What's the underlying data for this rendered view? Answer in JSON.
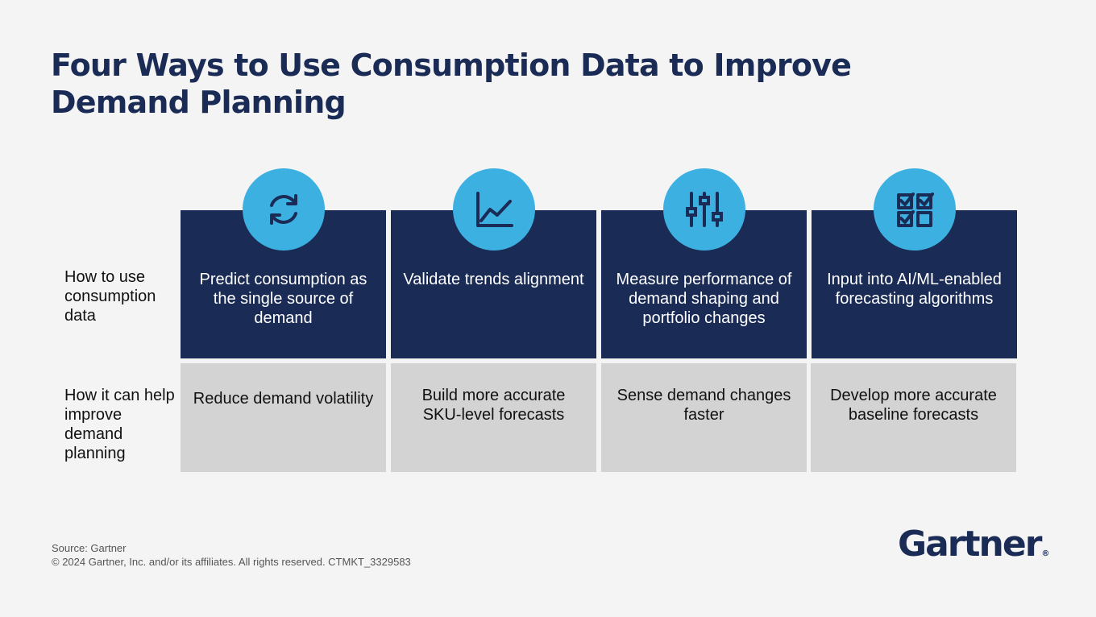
{
  "title": "Four Ways to Use Consumption Data to Improve Demand Planning",
  "row_labels": {
    "how_to_use": "How to use consumption data",
    "how_it_helps": "How it can help improve demand planning"
  },
  "columns": [
    {
      "icon": "refresh-icon",
      "use": "Predict consumption as the single source of demand",
      "benefit": "Reduce demand volatility"
    },
    {
      "icon": "trend-line-icon",
      "use": "Validate trends alignment",
      "benefit": "Build more accurate SKU-level forecasts"
    },
    {
      "icon": "sliders-icon",
      "use": "Measure performance of demand shaping and portfolio changes",
      "benefit": "Sense demand changes faster"
    },
    {
      "icon": "checklist-icon",
      "use": "Input into AI/ML-enabled forecasting algorithms",
      "benefit": "Develop more accurate baseline forecasts"
    }
  ],
  "footer": {
    "source": "Source: Gartner",
    "copyright": "© 2024 Gartner, Inc. and/or its affiliates. All rights reserved. CTMKT_3329583"
  },
  "logo": {
    "text": "Gartner",
    "mark": "®"
  },
  "colors": {
    "navy": "#1a2b55",
    "accent_blue": "#3cb0e1",
    "gray_box": "#d3d3d3",
    "background": "#f4f4f4"
  }
}
